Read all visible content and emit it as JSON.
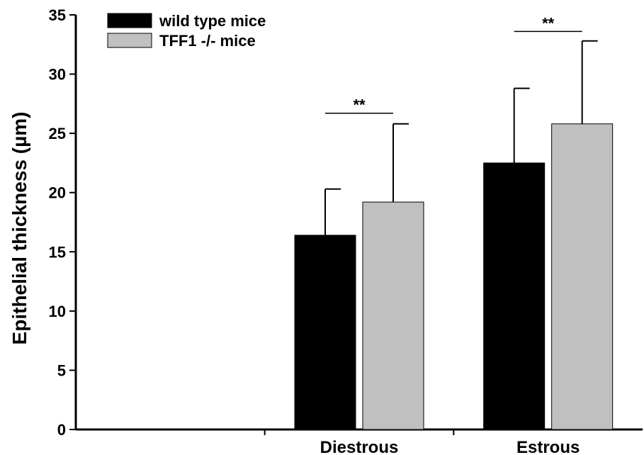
{
  "chart_data": {
    "type": "bar",
    "title": "",
    "xlabel": "",
    "ylabel": "Epithelial thickness (µm)",
    "ylim": [
      0,
      35
    ],
    "yticks": [
      0,
      5,
      10,
      15,
      20,
      25,
      30,
      35
    ],
    "group_slots": [
      "",
      "Diestrous",
      "Estrous"
    ],
    "categories": [
      "Diestrous",
      "Estrous"
    ],
    "series": [
      {
        "name": "wild type mice",
        "color": "#000000",
        "values": [
          16.4,
          22.5
        ],
        "error_plus": [
          3.9,
          6.3
        ]
      },
      {
        "name": "TFF1 -/- mice",
        "color": "#c0c0c0",
        "values": [
          19.2,
          25.8
        ],
        "error_plus": [
          6.6,
          7.0
        ]
      }
    ],
    "significance": [
      {
        "category": "Diestrous",
        "label": "**",
        "y": 26.7
      },
      {
        "category": "Estrous",
        "label": "**",
        "y": 33.6
      }
    ],
    "legend_position": "top-left",
    "grid": false
  }
}
